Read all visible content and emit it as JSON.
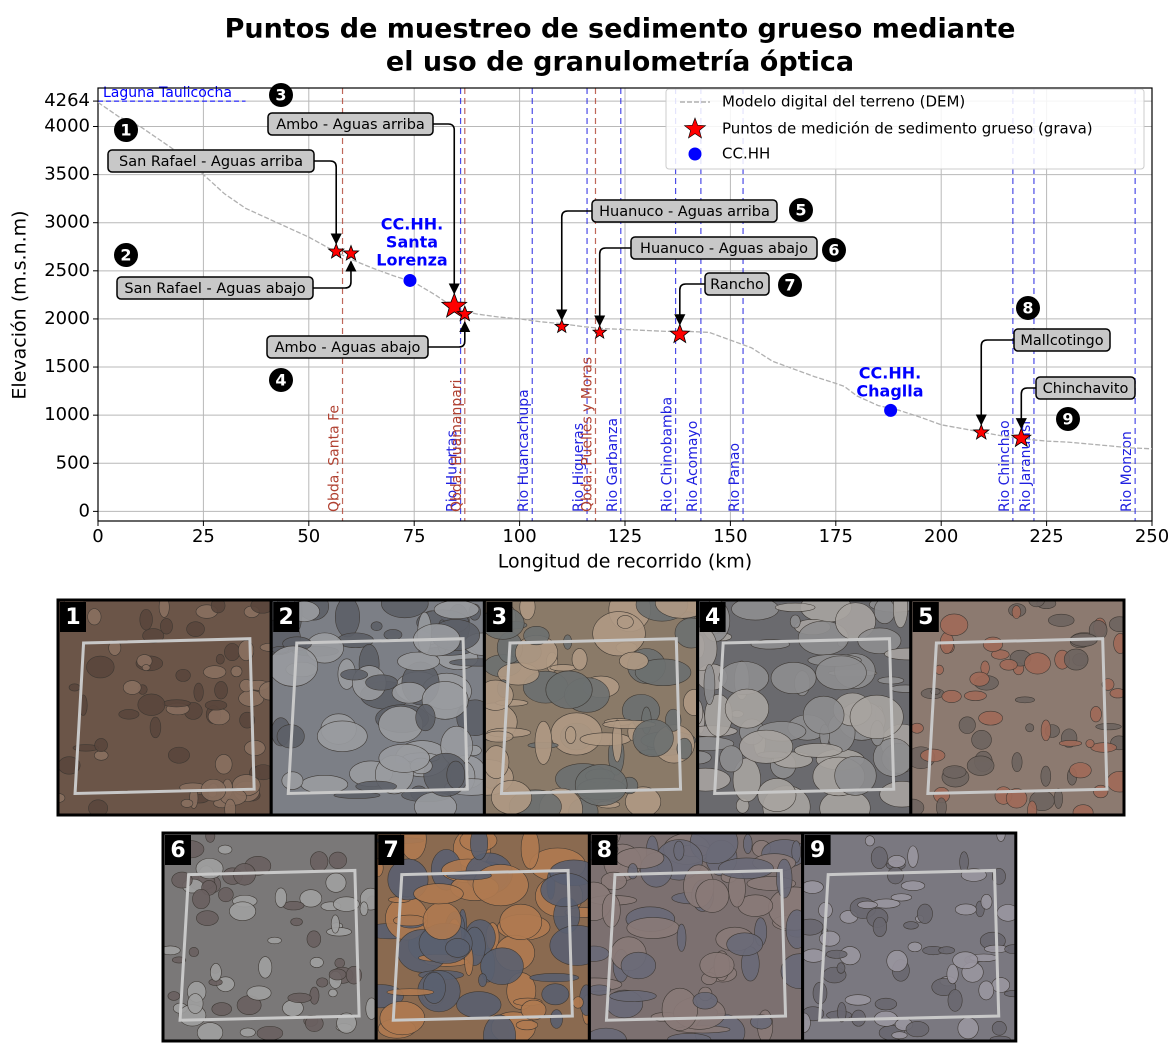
{
  "chart_data": {
    "type": "line",
    "title": [
      "Puntos de muestreo de sedimento grueso mediante",
      "el uso de granulometría óptica"
    ],
    "x_label": "Longitud de recorrido (km)",
    "y_label": "Elevación (m.s.n.m)",
    "xlim": [
      0,
      250
    ],
    "ylim": [
      -100,
      4400
    ],
    "xticks": [
      0,
      25,
      50,
      75,
      100,
      125,
      150,
      175,
      200,
      225,
      250
    ],
    "yticks": [
      0,
      500,
      1000,
      1500,
      2000,
      2500,
      3000,
      3500,
      4000,
      4264
    ],
    "grid": true,
    "legend": "upper right",
    "reference_line": {
      "label": "Laguna Taulicocha",
      "value": 4264,
      "color": "#0000ff"
    },
    "series": [
      {
        "name": "Modelo digital del terreno (DEM)",
        "color": "#b0b0b0",
        "marker": "dashed-line",
        "x": [
          0,
          5,
          10,
          15,
          20,
          25,
          30,
          35,
          40,
          45,
          50,
          55,
          60,
          65,
          70,
          75,
          80,
          85,
          90,
          95,
          100,
          105,
          110,
          115,
          120,
          125,
          130,
          135,
          140,
          145,
          150,
          155,
          160,
          165,
          170,
          175,
          177,
          180,
          185,
          190,
          195,
          200,
          205,
          210,
          215,
          220,
          225,
          230,
          235,
          240,
          245,
          250
        ],
        "values": [
          4250,
          4100,
          4000,
          3850,
          3700,
          3500,
          3300,
          3150,
          3050,
          2950,
          2850,
          2730,
          2620,
          2530,
          2450,
          2380,
          2250,
          2100,
          2050,
          2020,
          2000,
          1970,
          1950,
          1920,
          1900,
          1890,
          1880,
          1870,
          1870,
          1860,
          1780,
          1700,
          1560,
          1480,
          1400,
          1330,
          1300,
          1200,
          1100,
          1050,
          980,
          900,
          860,
          820,
          780,
          750,
          730,
          720,
          700,
          680,
          660,
          650
        ]
      },
      {
        "name": "Puntos de medición de sedimento grueso (grava)",
        "color": "#ff0000",
        "marker": "star",
        "x": [
          56.5,
          60,
          84.5,
          87,
          110,
          119,
          138,
          209.5,
          219
        ],
        "values": [
          2700,
          2680,
          2130,
          2050,
          1920,
          1860,
          1840,
          820,
          760
        ],
        "labels": [
          "San Rafael  - Aguas arriba",
          "San Rafael - Aguas abajo",
          "Ambo - Aguas arriba",
          "Ambo - Aguas abajo",
          "Huanuco - Aguas arriba",
          "Huanuco - Aguas abajo",
          "Rancho",
          "Mallcotingo",
          "Chinchavito"
        ],
        "numbers": [
          "1",
          "2",
          "3",
          "4",
          "5",
          "6",
          "7",
          "8",
          "9"
        ]
      },
      {
        "name": "CC.HH",
        "color": "#0000ff",
        "marker": "circle",
        "x": [
          74,
          188
        ],
        "values": [
          2400,
          1050
        ],
        "labels": [
          [
            "CC.HH.",
            "Santa",
            "Lorenza"
          ],
          [
            "CC.HH.",
            "Chaglla"
          ]
        ]
      }
    ],
    "vlines": [
      {
        "label": "Qbda. Santa Fe",
        "x": 58,
        "color": "#b04030"
      },
      {
        "label": "Rio Huertas",
        "x": 86,
        "color": "#1f1fe0"
      },
      {
        "label": "Qbda. Huamanpari",
        "x": 87,
        "color": "#b04030"
      },
      {
        "label": "Rio Huancachupa",
        "x": 103,
        "color": "#1f1fe0"
      },
      {
        "label": "Rio Higueras",
        "x": 116,
        "color": "#1f1fe0"
      },
      {
        "label": "Qbda. Puelles y Moras",
        "x": 118,
        "color": "#b04030"
      },
      {
        "label": "Rio Garbanza",
        "x": 124,
        "color": "#1f1fe0"
      },
      {
        "label": "Rio Chinobamba",
        "x": 137,
        "color": "#1f1fe0"
      },
      {
        "label": "Rio Acomayo",
        "x": 143,
        "color": "#1f1fe0"
      },
      {
        "label": "Rio Panao",
        "x": 153,
        "color": "#1f1fe0"
      },
      {
        "label": "Rio Chinchao",
        "x": 217,
        "color": "#1f1fe0"
      },
      {
        "label": "Rio Jaranuasi",
        "x": 222,
        "color": "#1f1fe0"
      },
      {
        "label": "Rio Monzon",
        "x": 246,
        "color": "#1f1fe0"
      }
    ]
  }
}
